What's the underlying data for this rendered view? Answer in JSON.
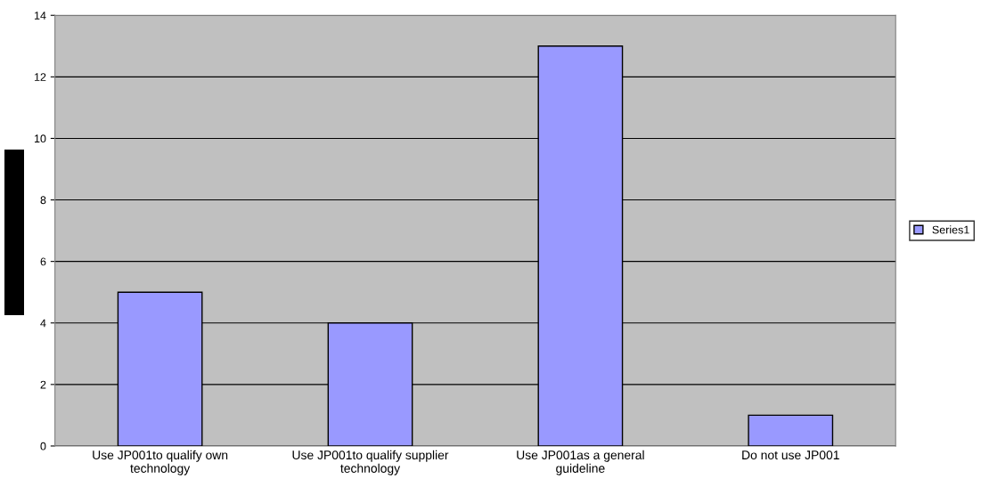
{
  "chart_data": {
    "type": "bar",
    "categories": [
      "Use JP001to qualify own\ntechnology",
      "Use JP001to qualify supplier\ntechnology",
      "Use JP001as a general\nguideline",
      "Do not use JP001"
    ],
    "series": [
      {
        "name": "Series1",
        "color": "#9999ff",
        "values": [
          5,
          4,
          13,
          1
        ]
      }
    ],
    "ylim": [
      0,
      14
    ],
    "yticks": [
      0,
      2,
      4,
      6,
      8,
      10,
      12,
      14
    ],
    "grid": "y",
    "legend": "right"
  }
}
